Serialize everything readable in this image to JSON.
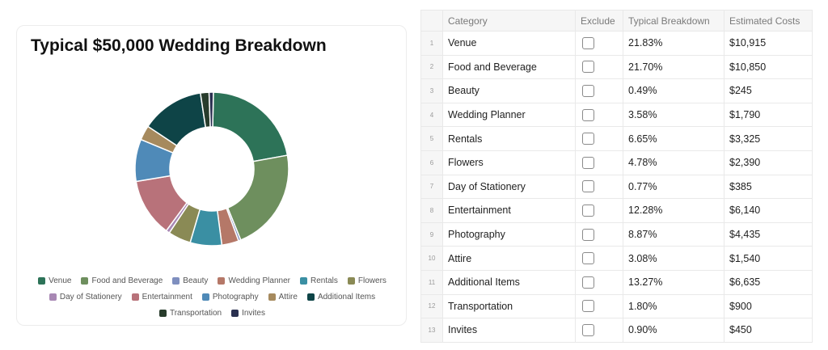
{
  "chart_card": {
    "title": "Typical $50,000 Wedding Breakdown"
  },
  "table": {
    "headers": {
      "category": "Category",
      "exclude": "Exclude",
      "breakdown": "Typical Breakdown",
      "cost": "Estimated Costs"
    },
    "rows": [
      {
        "index": "1",
        "category": "Venue",
        "breakdown": "21.83%",
        "cost": "$10,915"
      },
      {
        "index": "2",
        "category": "Food and Beverage",
        "breakdown": "21.70%",
        "cost": "$10,850"
      },
      {
        "index": "3",
        "category": "Beauty",
        "breakdown": "0.49%",
        "cost": "$245"
      },
      {
        "index": "4",
        "category": "Wedding Planner",
        "breakdown": "3.58%",
        "cost": "$1,790"
      },
      {
        "index": "5",
        "category": "Rentals",
        "breakdown": "6.65%",
        "cost": "$3,325"
      },
      {
        "index": "6",
        "category": "Flowers",
        "breakdown": "4.78%",
        "cost": "$2,390"
      },
      {
        "index": "7",
        "category": "Day of Stationery",
        "breakdown": "0.77%",
        "cost": "$385"
      },
      {
        "index": "8",
        "category": "Entertainment",
        "breakdown": "12.28%",
        "cost": "$6,140"
      },
      {
        "index": "9",
        "category": "Photography",
        "breakdown": "8.87%",
        "cost": "$4,435"
      },
      {
        "index": "10",
        "category": "Attire",
        "breakdown": "3.08%",
        "cost": "$1,540"
      },
      {
        "index": "11",
        "category": "Additional Items",
        "breakdown": "13.27%",
        "cost": "$6,635"
      },
      {
        "index": "12",
        "category": "Transportation",
        "breakdown": "1.80%",
        "cost": "$900"
      },
      {
        "index": "13",
        "category": "Invites",
        "breakdown": "0.90%",
        "cost": "$450"
      }
    ]
  },
  "chart_data": {
    "type": "pie",
    "title": "Typical $50,000 Wedding Breakdown",
    "donut": true,
    "legend_position": "bottom",
    "series": [
      {
        "name": "Venue",
        "value": 21.83,
        "color": "#2d7358"
      },
      {
        "name": "Food and Beverage",
        "value": 21.7,
        "color": "#6e8f5e"
      },
      {
        "name": "Beauty",
        "value": 0.49,
        "color": "#7f8fbf"
      },
      {
        "name": "Wedding Planner",
        "value": 3.58,
        "color": "#b57868"
      },
      {
        "name": "Rentals",
        "value": 6.65,
        "color": "#3a8fa3"
      },
      {
        "name": "Flowers",
        "value": 4.78,
        "color": "#8a8a55"
      },
      {
        "name": "Day of Stationery",
        "value": 0.77,
        "color": "#a888b4"
      },
      {
        "name": "Entertainment",
        "value": 12.28,
        "color": "#b8727a"
      },
      {
        "name": "Photography",
        "value": 8.87,
        "color": "#4f8ab8"
      },
      {
        "name": "Attire",
        "value": 3.08,
        "color": "#a68a5e"
      },
      {
        "name": "Additional Items",
        "value": 13.27,
        "color": "#0e4447"
      },
      {
        "name": "Transportation",
        "value": 1.8,
        "color": "#283c2c"
      },
      {
        "name": "Invites",
        "value": 0.9,
        "color": "#2a3050"
      }
    ]
  }
}
